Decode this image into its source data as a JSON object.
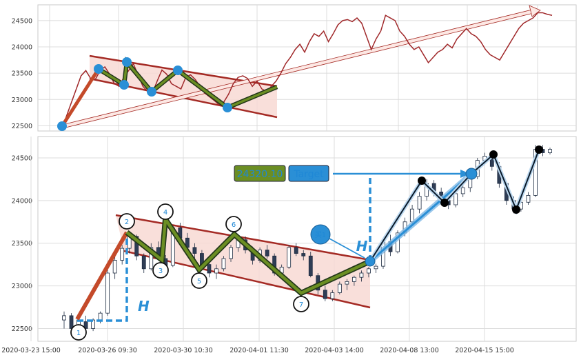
{
  "chart_data": [
    {
      "type": "line",
      "panel": "overview",
      "grid": true,
      "ylim": [
        22400,
        24800
      ],
      "yticks": [
        22500,
        23000,
        23500,
        24000,
        24500
      ],
      "series": [
        {
          "values": [
            22460,
            22700,
            22950,
            23200,
            23450,
            23550,
            23400,
            23380,
            23550,
            23620,
            23480,
            23300,
            23250,
            23420,
            23550,
            23680,
            23460,
            23250,
            23150,
            23120,
            23350,
            23560,
            23480,
            23300,
            23250,
            23200,
            23420,
            23470,
            23380,
            23250,
            23120,
            23050,
            22980,
            22900,
            22950,
            23100,
            23300,
            23420,
            23450,
            23400,
            23250,
            23350,
            23200,
            23150,
            23250,
            23350,
            23500,
            23680,
            23800,
            23950,
            24050,
            23900,
            24100,
            24250,
            24200,
            24300,
            24100,
            24250,
            24420,
            24500,
            24520,
            24480,
            24550,
            24450,
            24200,
            23950,
            24150,
            24300,
            24600,
            24550,
            24500,
            24300,
            24200,
            24050,
            23950,
            24000,
            23850,
            23700,
            23800,
            23900,
            23950,
            24050,
            23980,
            24150,
            24250,
            24350,
            24250,
            24200,
            24100,
            23950,
            23850,
            23800,
            23750,
            23900,
            24050,
            24200,
            24350,
            24450,
            24500,
            24550,
            24650,
            24650,
            24620,
            24600
          ]
        }
      ]
    },
    {
      "type": "candlestick",
      "panel": "main",
      "grid": true,
      "ylim": [
        22350,
        24750
      ],
      "yticks": [
        22500,
        23000,
        23500,
        24000,
        24500
      ],
      "xticks": [
        "2020-03-23 15:00",
        "2020-03-26 09:30",
        "2020-03-30 10:30",
        "2020-04-01 11:30",
        "2020-04-03 14:00",
        "2020-04-08 13:00",
        "2020-04-15 15:00"
      ],
      "candles": [
        {
          "o": 22600,
          "h": 22700,
          "l": 22500,
          "c": 22650
        },
        {
          "o": 22650,
          "h": 22680,
          "l": 22480,
          "c": 22500
        },
        {
          "o": 22480,
          "h": 22620,
          "l": 22460,
          "c": 22600
        },
        {
          "o": 22580,
          "h": 22650,
          "l": 22470,
          "c": 22500
        },
        {
          "o": 22500,
          "h": 22620,
          "l": 22470,
          "c": 22600
        },
        {
          "o": 22600,
          "h": 22700,
          "l": 22560,
          "c": 22680
        },
        {
          "o": 22680,
          "h": 23200,
          "l": 22650,
          "c": 23150
        },
        {
          "o": 23150,
          "h": 23350,
          "l": 23080,
          "c": 23300
        },
        {
          "o": 23300,
          "h": 23480,
          "l": 23250,
          "c": 23440
        },
        {
          "o": 23440,
          "h": 23620,
          "l": 23380,
          "c": 23580
        },
        {
          "o": 23580,
          "h": 23600,
          "l": 23300,
          "c": 23350
        },
        {
          "o": 23350,
          "h": 23380,
          "l": 23150,
          "c": 23200
        },
        {
          "o": 23200,
          "h": 23500,
          "l": 23180,
          "c": 23450
        },
        {
          "o": 23450,
          "h": 23520,
          "l": 23300,
          "c": 23320
        },
        {
          "o": 23320,
          "h": 23360,
          "l": 23180,
          "c": 23240
        },
        {
          "o": 23240,
          "h": 23700,
          "l": 23220,
          "c": 23680
        },
        {
          "o": 23680,
          "h": 23740,
          "l": 23520,
          "c": 23560
        },
        {
          "o": 23560,
          "h": 23620,
          "l": 23400,
          "c": 23450
        },
        {
          "o": 23450,
          "h": 23500,
          "l": 23300,
          "c": 23380
        },
        {
          "o": 23380,
          "h": 23420,
          "l": 23200,
          "c": 23250
        },
        {
          "o": 23250,
          "h": 23300,
          "l": 23100,
          "c": 23150
        },
        {
          "o": 23150,
          "h": 23250,
          "l": 23080,
          "c": 23200
        },
        {
          "o": 23200,
          "h": 23350,
          "l": 23170,
          "c": 23320
        },
        {
          "o": 23320,
          "h": 23480,
          "l": 23280,
          "c": 23450
        },
        {
          "o": 23450,
          "h": 23560,
          "l": 23400,
          "c": 23540
        },
        {
          "o": 23540,
          "h": 23580,
          "l": 23380,
          "c": 23420
        },
        {
          "o": 23420,
          "h": 23460,
          "l": 23250,
          "c": 23300
        },
        {
          "o": 23300,
          "h": 23450,
          "l": 23270,
          "c": 23420
        },
        {
          "o": 23420,
          "h": 23480,
          "l": 23320,
          "c": 23350
        },
        {
          "o": 23350,
          "h": 23380,
          "l": 23120,
          "c": 23150
        },
        {
          "o": 23150,
          "h": 23250,
          "l": 23100,
          "c": 23220
        },
        {
          "o": 23220,
          "h": 23480,
          "l": 23200,
          "c": 23450
        },
        {
          "o": 23450,
          "h": 23500,
          "l": 23350,
          "c": 23380
        },
        {
          "o": 23380,
          "h": 23420,
          "l": 23300,
          "c": 23350
        },
        {
          "o": 23350,
          "h": 23400,
          "l": 23100,
          "c": 23120
        },
        {
          "o": 23120,
          "h": 23150,
          "l": 22900,
          "c": 22950
        },
        {
          "o": 22950,
          "h": 23000,
          "l": 22820,
          "c": 22850
        },
        {
          "o": 22850,
          "h": 22950,
          "l": 22820,
          "c": 22920
        },
        {
          "o": 22920,
          "h": 23050,
          "l": 22900,
          "c": 23020
        },
        {
          "o": 23020,
          "h": 23080,
          "l": 22950,
          "c": 23050
        },
        {
          "o": 23050,
          "h": 23120,
          "l": 23000,
          "c": 23100
        },
        {
          "o": 23100,
          "h": 23180,
          "l": 23050,
          "c": 23150
        },
        {
          "o": 23150,
          "h": 23220,
          "l": 23100,
          "c": 23200
        },
        {
          "o": 23200,
          "h": 23260,
          "l": 23150,
          "c": 23230
        },
        {
          "o": 23230,
          "h": 23560,
          "l": 23200,
          "c": 23520
        },
        {
          "o": 23520,
          "h": 23600,
          "l": 23350,
          "c": 23400
        },
        {
          "o": 23400,
          "h": 23650,
          "l": 23380,
          "c": 23620
        },
        {
          "o": 23620,
          "h": 23800,
          "l": 23580,
          "c": 23750
        },
        {
          "o": 23750,
          "h": 23950,
          "l": 23700,
          "c": 23900
        },
        {
          "o": 23900,
          "h": 24100,
          "l": 23850,
          "c": 24050
        },
        {
          "o": 24050,
          "h": 24250,
          "l": 24000,
          "c": 24200
        },
        {
          "o": 24200,
          "h": 24240,
          "l": 24050,
          "c": 24100
        },
        {
          "o": 24100,
          "h": 24150,
          "l": 23950,
          "c": 24000
        },
        {
          "o": 24000,
          "h": 24050,
          "l": 23900,
          "c": 23950
        },
        {
          "o": 23950,
          "h": 24100,
          "l": 23920,
          "c": 24080
        },
        {
          "o": 24080,
          "h": 24200,
          "l": 24040,
          "c": 24150
        },
        {
          "o": 24150,
          "h": 24300,
          "l": 24100,
          "c": 24280
        },
        {
          "o": 24280,
          "h": 24500,
          "l": 24250,
          "c": 24470
        },
        {
          "o": 24470,
          "h": 24560,
          "l": 24420,
          "c": 24520
        },
        {
          "o": 24520,
          "h": 24580,
          "l": 24350,
          "c": 24400
        },
        {
          "o": 24400,
          "h": 24450,
          "l": 24150,
          "c": 24200
        },
        {
          "o": 24200,
          "h": 24220,
          "l": 23950,
          "c": 24000
        },
        {
          "o": 24000,
          "h": 24050,
          "l": 23850,
          "c": 23900
        },
        {
          "o": 23900,
          "h": 24000,
          "l": 23870,
          "c": 23980
        },
        {
          "o": 23980,
          "h": 24100,
          "l": 23950,
          "c": 24060
        },
        {
          "o": 24060,
          "h": 24650,
          "l": 24040,
          "c": 24600
        },
        {
          "o": 24600,
          "h": 24650,
          "l": 24520,
          "c": 24560
        },
        {
          "o": 24560,
          "h": 24620,
          "l": 24540,
          "c": 24600
        }
      ],
      "annotations": {
        "points": [
          {
            "label": "1",
            "value": 22480
          },
          {
            "label": "2",
            "value": 23580
          },
          {
            "label": "3",
            "value": 23250
          },
          {
            "label": "4",
            "value": 23700
          },
          {
            "label": "5",
            "value": 23120
          },
          {
            "label": "6",
            "value": 23560
          },
          {
            "label": "7",
            "value": 22840
          }
        ],
        "price_box": "24320.10",
        "target_box": "Target",
        "measure_label": "H",
        "buy_marker": "买1"
      }
    }
  ],
  "colors": {
    "price_line": "#a0282a",
    "channel_line": "#a42a24",
    "channel_fill": "#f8d9d4",
    "pattern_line": "#6b8e23",
    "leg_line": "#0a1a2a",
    "blue": "#2a8fd6",
    "price_box": "#6b8e23"
  }
}
